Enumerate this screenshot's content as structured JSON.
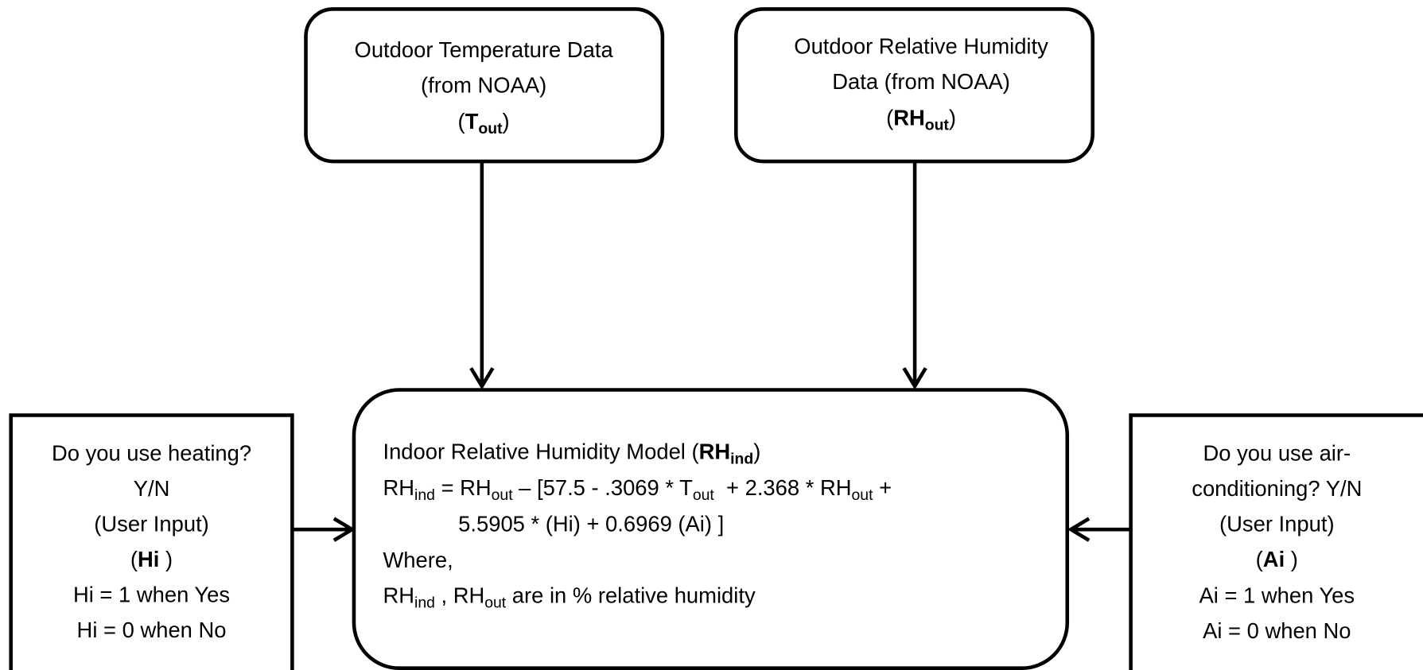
{
  "nodes": [
    {
      "lines": [
        [
          "Outdoor Temperature Data"
        ],
        [
          "(from NOAA)"
        ],
        [
          "(",
          {
            "text": "T",
            "bold": true
          },
          {
            "text": "out",
            "bold": true,
            "sub": true
          },
          ")"
        ]
      ]
    },
    {
      "lines": [
        [
          "Outdoor Relative Humidity"
        ],
        [
          "Data (from NOAA)"
        ],
        [
          "(",
          {
            "text": "RH",
            "bold": true
          },
          {
            "text": "out",
            "bold": true,
            "sub": true
          },
          ")"
        ]
      ]
    },
    {
      "lines": [
        [
          "Indoor Relative Humidity Model (",
          {
            "text": "RH",
            "bold": true
          },
          {
            "text": "ind",
            "bold": true,
            "sub": true
          },
          ")"
        ],
        [
          "RH",
          {
            "text": "ind",
            "sub": true
          },
          " = RH",
          {
            "text": "out",
            "sub": true
          },
          " – [57.5 - .3069 * T",
          {
            "text": "out",
            "sub": true
          },
          "  + 2.368 * RH",
          {
            "text": "out",
            "sub": true
          },
          " +"
        ],
        [
          "5.5905 * (Hi) + 0.6969 (Ai) ]"
        ],
        [
          "Where,"
        ],
        [
          "RH",
          {
            "text": "ind",
            "sub": true
          },
          " , RH",
          {
            "text": "out",
            "sub": true
          },
          " are in % relative humidity"
        ]
      ]
    },
    {
      "lines": [
        [
          "Do you use heating?"
        ],
        [
          "Y/N"
        ],
        [
          "(User Input)"
        ],
        [
          "(",
          {
            "text": "Hi ",
            "bold": true
          },
          ")"
        ],
        [
          "Hi = 1 when Yes"
        ],
        [
          "Hi = 0 when No"
        ]
      ]
    },
    {
      "lines": [
        [
          "Do you use air-"
        ],
        [
          "conditioning? Y/N"
        ],
        [
          "(User Input)"
        ],
        [
          "(",
          {
            "text": "Ai ",
            "bold": true
          },
          ")"
        ],
        [
          "Ai = 1 when Yes"
        ],
        [
          "Ai = 0 when No"
        ]
      ]
    }
  ]
}
